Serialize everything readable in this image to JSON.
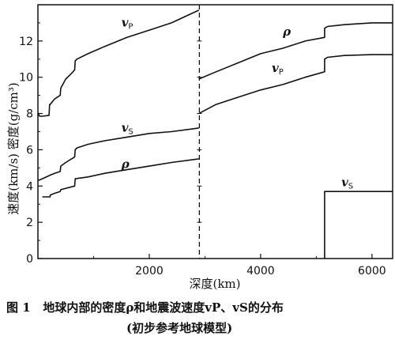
{
  "chart_data": {
    "type": "line",
    "title": "",
    "xlabel": "深度(km)",
    "ylabel": "速度(km/s) 密度(g/cm³)",
    "xlim": [
      0,
      6371
    ],
    "ylim": [
      0,
      14
    ],
    "x_ticks": [
      2000,
      4000,
      6000
    ],
    "y_ticks": [
      0,
      2,
      4,
      6,
      8,
      10,
      12
    ],
    "grid": false,
    "divider_depth": 2900,
    "series": [
      {
        "name": "vP",
        "label_main": "v",
        "label_sub": "P",
        "x": [
          0,
          15,
          15,
          35,
          80,
          200,
          210,
          220,
          300,
          400,
          410,
          500,
          600,
          660,
          670,
          700,
          900,
          1200,
          1600,
          2000,
          2400,
          2891
        ],
        "y": [
          8.0,
          8.0,
          7.9,
          7.85,
          7.85,
          7.9,
          8.5,
          8.5,
          8.8,
          9.0,
          9.4,
          9.9,
          10.2,
          10.4,
          10.9,
          11.0,
          11.3,
          11.7,
          12.2,
          12.6,
          13.0,
          13.7
        ]
      },
      {
        "name": "vS",
        "label_main": "v",
        "label_sub": "S",
        "x": [
          0,
          80,
          220,
          300,
          400,
          410,
          500,
          660,
          670,
          700,
          900,
          1200,
          1600,
          2000,
          2400,
          2891
        ],
        "y": [
          4.3,
          4.4,
          4.6,
          4.7,
          4.8,
          5.1,
          5.3,
          5.6,
          6.0,
          6.1,
          6.3,
          6.5,
          6.7,
          6.9,
          7.0,
          7.2
        ]
      },
      {
        "name": "ρ",
        "label_main": "ρ",
        "label_sub": "",
        "x": [
          80,
          220,
          220,
          300,
          400,
          410,
          660,
          670,
          900,
          1200,
          1600,
          2000,
          2400,
          2891
        ],
        "y": [
          3.4,
          3.4,
          3.5,
          3.6,
          3.7,
          3.8,
          4.0,
          4.4,
          4.5,
          4.7,
          4.9,
          5.1,
          5.3,
          5.5
        ]
      },
      {
        "name": "ρ core",
        "label_main": "ρ",
        "label_sub": "",
        "x": [
          2891,
          3200,
          3600,
          4000,
          4400,
          4800,
          5150,
          5150,
          5200,
          5500,
          6000,
          6371
        ],
        "y": [
          9.9,
          10.3,
          10.8,
          11.3,
          11.6,
          12.0,
          12.2,
          12.7,
          12.8,
          12.9,
          13.0,
          13.0
        ]
      },
      {
        "name": "vP core",
        "label_main": "v",
        "label_sub": "P",
        "x": [
          2891,
          3200,
          3600,
          4000,
          4400,
          4800,
          5150,
          5150,
          5200,
          5500,
          6000,
          6371
        ],
        "y": [
          8.0,
          8.5,
          8.9,
          9.3,
          9.6,
          10.0,
          10.3,
          11.0,
          11.1,
          11.2,
          11.25,
          11.25
        ]
      },
      {
        "name": "vS core",
        "label_main": "v",
        "label_sub": "S",
        "x": [
          5150,
          5150,
          6371
        ],
        "y": [
          0,
          3.7,
          3.7
        ]
      }
    ],
    "series_labels": [
      {
        "series": "vP",
        "x": 1500,
        "y": 12.8
      },
      {
        "series": "vS",
        "x": 1500,
        "y": 7.0
      },
      {
        "series": "ρ",
        "x": 1500,
        "y": 5.0
      },
      {
        "series": "ρ core",
        "x": 4400,
        "y": 12.3
      },
      {
        "series": "vP core",
        "x": 4200,
        "y": 10.3
      },
      {
        "series": "vS core",
        "x": 5450,
        "y": 4.0
      }
    ]
  },
  "caption": {
    "line1": "图 1   地球内部的密度ρ和地震波速度vP、vS的分布",
    "line2": "(初步参考地球模型)"
  }
}
